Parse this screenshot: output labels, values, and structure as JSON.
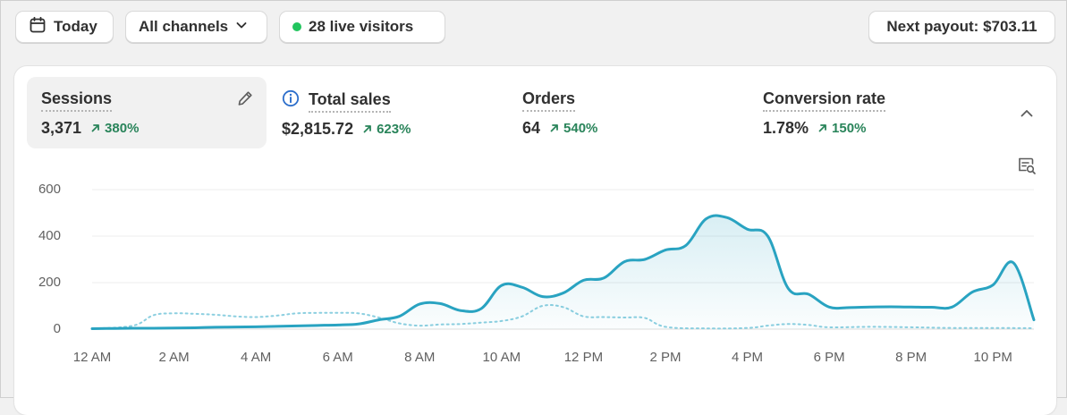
{
  "toolbar": {
    "today_label": "Today",
    "channels_label": "All channels",
    "visitors_label": "28 live visitors",
    "payout_label": "Next payout: $703.11",
    "live_dot_color": "#22c55e"
  },
  "metrics": [
    {
      "label": "Sessions",
      "value": "3,371",
      "delta": "380%",
      "active": true
    },
    {
      "label": "Total sales",
      "value": "$2,815.72",
      "delta": "623%"
    },
    {
      "label": "Orders",
      "value": "64",
      "delta": "540%"
    },
    {
      "label": "Conversion rate",
      "value": "1.78%",
      "delta": "150%"
    }
  ],
  "chart_data": {
    "type": "line",
    "title": "",
    "xlabel": "",
    "ylabel": "",
    "ylim": [
      0,
      600
    ],
    "yticks": [
      "600",
      "400",
      "200",
      "0"
    ],
    "xticks": [
      "12 AM",
      "2 AM",
      "4 AM",
      "6 AM",
      "8 AM",
      "10 AM",
      "12 PM",
      "2 PM",
      "4 PM",
      "6 PM",
      "8 PM",
      "10 PM"
    ],
    "grid": true,
    "legend": "none",
    "colors": {
      "primary": "#29a3c1",
      "comparison": "#8ccfe0"
    },
    "series": [
      {
        "style": "solid",
        "x": [
          0,
          0.5,
          1,
          1.5,
          2,
          2.5,
          3,
          3.5,
          4,
          4.5,
          5,
          5.5,
          6,
          6.5,
          7,
          7.5,
          8,
          8.5,
          9,
          9.5,
          10,
          10.5,
          11,
          11.5,
          12,
          12.5,
          13,
          13.5,
          14,
          14.5,
          15,
          15.5,
          16,
          16.5,
          17,
          17.5,
          18,
          18.5,
          19,
          19.5,
          20,
          20.5,
          21,
          21.5,
          22,
          22.5,
          23
        ],
        "values": [
          2,
          3,
          4,
          4,
          5,
          6,
          8,
          9,
          10,
          12,
          14,
          16,
          18,
          22,
          40,
          55,
          108,
          110,
          80,
          88,
          188,
          180,
          140,
          155,
          210,
          220,
          290,
          300,
          340,
          360,
          475,
          480,
          430,
          400,
          175,
          150,
          95,
          93,
          95,
          96,
          95,
          94,
          95,
          160,
          190,
          285,
          40
        ]
      },
      {
        "style": "dotted",
        "x": [
          0,
          1,
          1.5,
          2,
          2.5,
          3,
          3.5,
          4,
          4.5,
          5,
          5.5,
          6,
          6.5,
          7,
          7.5,
          8,
          8.5,
          9,
          9.5,
          10,
          10.5,
          11,
          11.5,
          12,
          12.5,
          13,
          13.5,
          14,
          15,
          16,
          16.5,
          17,
          17.5,
          18,
          19,
          20,
          21,
          22,
          23
        ],
        "values": [
          2,
          15,
          60,
          68,
          66,
          62,
          55,
          52,
          58,
          68,
          70,
          70,
          68,
          50,
          25,
          15,
          20,
          22,
          28,
          35,
          55,
          100,
          95,
          55,
          52,
          50,
          48,
          10,
          3,
          5,
          15,
          22,
          18,
          8,
          10,
          8,
          5,
          5,
          4
        ]
      }
    ]
  }
}
